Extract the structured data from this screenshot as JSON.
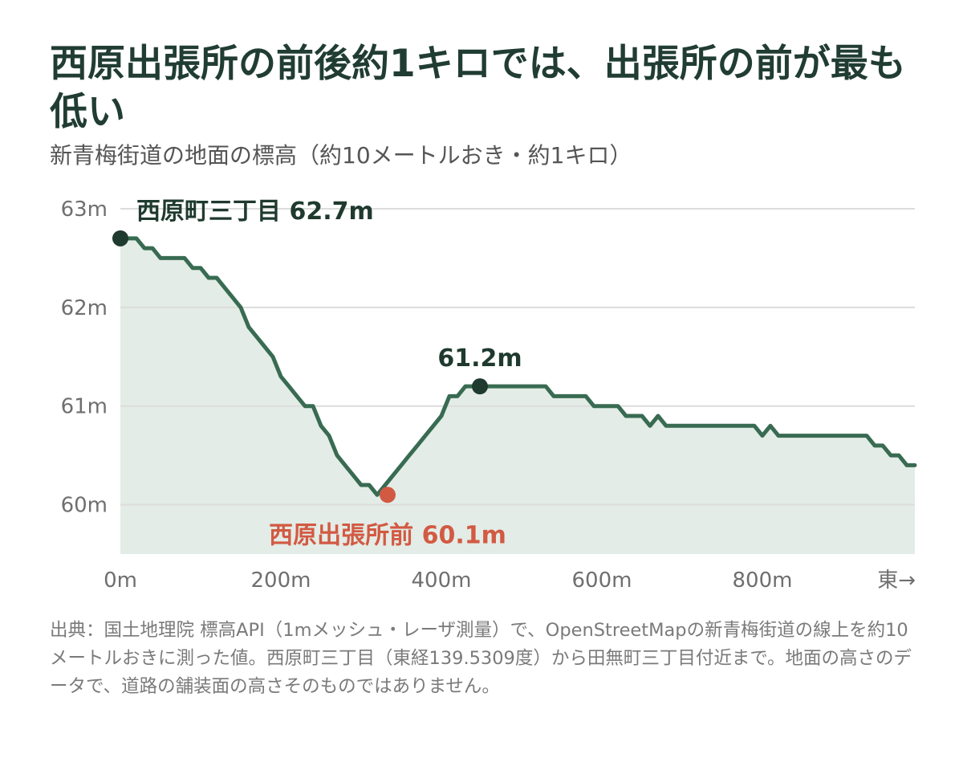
{
  "title": "西原出張所の前後約1キロでは、出張所の前が最も低い",
  "subtitle": "新青梅街道の地面の標高（約10メートルおき・約1キロ）",
  "source": "出典：国土地理院 標高API（1mメッシュ・レーザ測量）で、OpenStreetMapの新青梅街道の線上を約10メートルおきに測った値。西原町三丁目（東経139.5309度）から田無町三丁目付近まで。地面の高さのデータで、道路の舗装面の高さそのものではありません。",
  "colors": {
    "line": "#386b52",
    "area": "#e3ece6",
    "dark_point": "#1f3a2e",
    "low_point": "#d25a43",
    "title": "#213d33",
    "grid": "#dcdcdc",
    "axis_text": "#6f6f6f"
  },
  "chart_data": {
    "type": "area",
    "xlabel": "",
    "ylabel": "",
    "xlim": [
      0,
      990
    ],
    "ylim": [
      59.5,
      63
    ],
    "grid": "horizontal",
    "x_ticks": [
      0,
      200,
      400,
      600,
      800
    ],
    "x_tick_labels": [
      "0m",
      "200m",
      "400m",
      "600m",
      "800m"
    ],
    "x_end_label": "東→",
    "y_ticks": [
      60,
      61,
      62,
      63
    ],
    "y_tick_labels": [
      "60m",
      "61m",
      "62m",
      "63m"
    ],
    "series": [
      {
        "x": [
          0,
          10,
          20,
          30,
          40,
          50,
          60,
          70,
          80,
          90,
          100,
          110,
          120,
          130,
          140,
          150,
          160,
          170,
          180,
          190,
          200,
          210,
          220,
          230,
          240,
          250,
          260,
          270,
          280,
          290,
          300,
          310,
          320,
          330,
          340,
          350,
          360,
          370,
          380,
          390,
          400,
          410,
          420,
          430,
          440,
          450,
          460,
          470,
          480,
          490,
          500,
          510,
          520,
          530,
          540,
          550,
          560,
          570,
          580,
          590,
          600,
          610,
          620,
          630,
          640,
          650,
          660,
          670,
          680,
          690,
          700,
          710,
          720,
          730,
          740,
          750,
          760,
          770,
          780,
          790,
          800,
          810,
          820,
          830,
          840,
          850,
          860,
          870,
          880,
          890,
          900,
          910,
          920,
          930,
          940,
          950,
          960,
          970,
          980,
          990
        ],
        "y": [
          62.7,
          62.7,
          62.7,
          62.6,
          62.6,
          62.5,
          62.5,
          62.5,
          62.5,
          62.4,
          62.4,
          62.3,
          62.3,
          62.2,
          62.1,
          62.0,
          61.8,
          61.7,
          61.6,
          61.5,
          61.3,
          61.2,
          61.1,
          61.0,
          61.0,
          60.8,
          60.7,
          60.5,
          60.4,
          60.3,
          60.2,
          60.2,
          60.1,
          60.2,
          60.3,
          60.4,
          60.5,
          60.6,
          60.7,
          60.8,
          60.9,
          61.1,
          61.1,
          61.2,
          61.2,
          61.2,
          61.2,
          61.2,
          61.2,
          61.2,
          61.2,
          61.2,
          61.2,
          61.2,
          61.1,
          61.1,
          61.1,
          61.1,
          61.1,
          61.0,
          61.0,
          61.0,
          61.0,
          60.9,
          60.9,
          60.9,
          60.8,
          60.9,
          60.8,
          60.8,
          60.8,
          60.8,
          60.8,
          60.8,
          60.8,
          60.8,
          60.8,
          60.8,
          60.8,
          60.8,
          60.7,
          60.8,
          60.7,
          60.7,
          60.7,
          60.7,
          60.7,
          60.7,
          60.7,
          60.7,
          60.7,
          60.7,
          60.7,
          60.7,
          60.6,
          60.6,
          60.5,
          60.5,
          60.4,
          60.4
        ]
      }
    ],
    "annotations": [
      {
        "x": 0,
        "y": 62.7,
        "label": "西原町三丁目 62.7m",
        "role": "start"
      },
      {
        "x": 448,
        "y": 61.2,
        "label": "61.2m",
        "role": "peak"
      },
      {
        "x": 333,
        "y": 60.1,
        "label": "西原出張所前 60.1m",
        "role": "low"
      }
    ]
  }
}
